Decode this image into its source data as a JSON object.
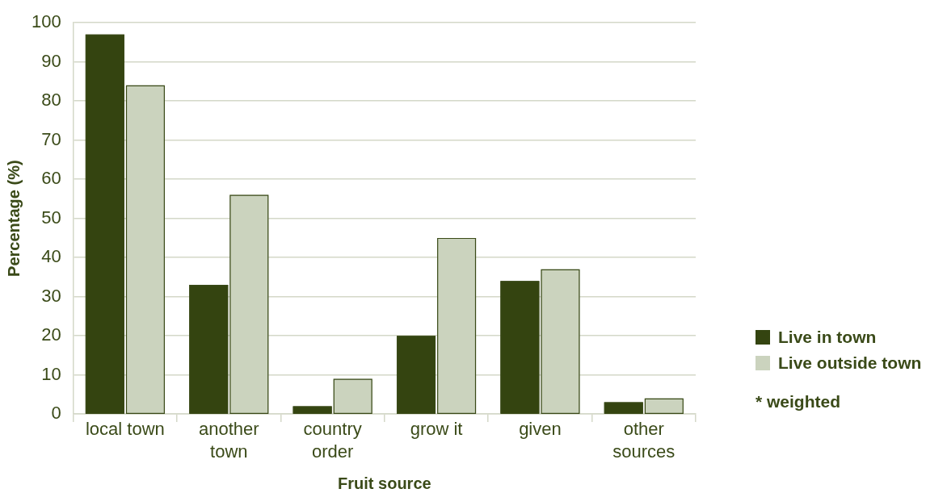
{
  "chart_data": {
    "type": "bar",
    "xlabel": "Fruit source",
    "ylabel": "Percentage (%)",
    "categories": [
      "local town",
      "another town",
      "country order",
      "grow it",
      "given",
      "other sources"
    ],
    "series": [
      {
        "name": "Live in town",
        "color": "#344410",
        "values": [
          97,
          33,
          2,
          20,
          34,
          3
        ]
      },
      {
        "name": "Live outside town",
        "color": "#cbd3be",
        "values": [
          84,
          56,
          9,
          45,
          37,
          4
        ]
      }
    ],
    "ylim": [
      0,
      100
    ],
    "yticks": [
      0,
      10,
      20,
      30,
      40,
      50,
      60,
      70,
      80,
      90,
      100
    ],
    "grid": "y",
    "legend": "right",
    "annotations": [
      "* weighted"
    ]
  }
}
